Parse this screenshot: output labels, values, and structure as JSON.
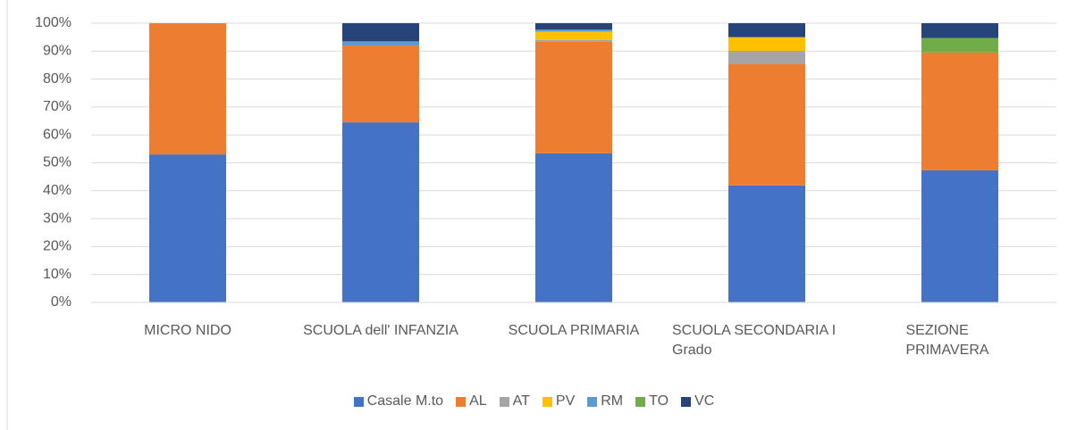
{
  "chart_data": {
    "type": "stacked_bar_100",
    "categories": [
      "MICRO NIDO",
      "SCUOLA dell' INFANZIA",
      "SCUOLA PRIMARIA",
      "SCUOLA SECONDARIA I Grado",
      "SEZIONE PRIMAVERA"
    ],
    "series": [
      {
        "name": "Casale M.to",
        "color": "#4472c4",
        "values": [
          53.0,
          64.5,
          53.4,
          41.9,
          47.3
        ]
      },
      {
        "name": "AL",
        "color": "#ed7d31",
        "values": [
          47.0,
          27.5,
          39.9,
          43.4,
          42.2
        ]
      },
      {
        "name": "AT",
        "color": "#a5a5a5",
        "values": [
          0,
          0,
          0.7,
          4.8,
          0
        ]
      },
      {
        "name": "PV",
        "color": "#ffc000",
        "values": [
          0,
          0,
          3.0,
          4.9,
          0
        ]
      },
      {
        "name": "RM",
        "color": "#5b9bd5",
        "values": [
          0,
          1.5,
          0.7,
          0,
          0
        ]
      },
      {
        "name": "TO",
        "color": "#70ad47",
        "values": [
          0,
          0,
          0,
          0,
          5.2
        ]
      },
      {
        "name": "VC",
        "color": "#264478",
        "values": [
          0,
          6.5,
          2.3,
          5.0,
          5.3
        ]
      }
    ],
    "ylim": [
      0,
      100
    ],
    "yticks": [
      {
        "value": 0,
        "label": "0%"
      },
      {
        "value": 10,
        "label": "10%"
      },
      {
        "value": 20,
        "label": "20%"
      },
      {
        "value": 30,
        "label": "30%"
      },
      {
        "value": 40,
        "label": "40%"
      },
      {
        "value": 50,
        "label": "50%"
      },
      {
        "value": 60,
        "label": "60%"
      },
      {
        "value": 70,
        "label": "70%"
      },
      {
        "value": 80,
        "label": "80%"
      },
      {
        "value": 90,
        "label": "90%"
      },
      {
        "value": 100,
        "label": "100%"
      }
    ],
    "grid": true,
    "legend": "bottom"
  }
}
